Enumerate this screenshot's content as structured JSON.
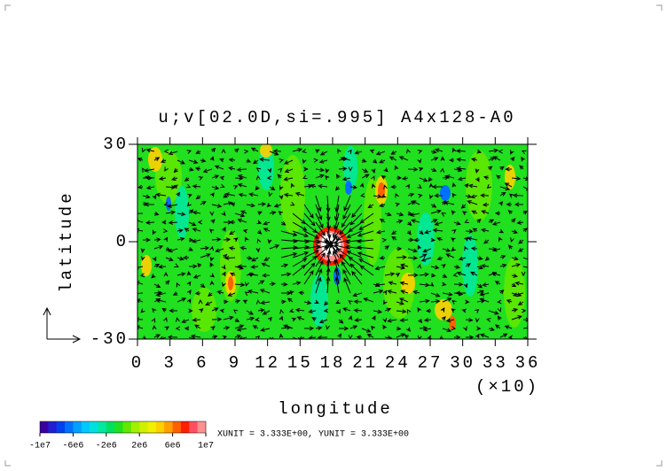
{
  "chart_data": {
    "type": "heatmap",
    "title": "u;v[02.0D,si=.995] A4x128-A0",
    "xlabel": "longitude",
    "ylabel": "latitude",
    "xscale_note": "(×10)",
    "xlim": [
      0,
      36
    ],
    "xticks": [
      0,
      3,
      6,
      9,
      12,
      15,
      18,
      21,
      24,
      27,
      30,
      33,
      36
    ],
    "ylim": [
      -30,
      30
    ],
    "yticks": [
      -30,
      0,
      30
    ],
    "colorbar": {
      "lim": [
        -10000000,
        10000000
      ],
      "colors": [
        "#3c00a0",
        "#2020d0",
        "#0040f0",
        "#0070ff",
        "#00a0ff",
        "#00c8ff",
        "#00e0e0",
        "#00e8a0",
        "#00e060",
        "#20e020",
        "#60e800",
        "#a0f000",
        "#d0f000",
        "#f0f000",
        "#ffd000",
        "#ffa000",
        "#ff6000",
        "#ff2000",
        "#ff5060",
        "#ff9090"
      ],
      "ticks": [
        {
          "value": -10000000,
          "label": "-1e7"
        },
        {
          "value": -6000000,
          "label": "-6e6"
        },
        {
          "value": -2000000,
          "label": "-2e6"
        },
        {
          "value": 2000000,
          "label": "2e6"
        },
        {
          "value": 6000000,
          "label": "6e6"
        },
        {
          "value": 10000000,
          "label": "1e7"
        }
      ]
    },
    "unit_note": "XUNIT = 3.333E+00, YUNIT = 3.333E+00"
  }
}
